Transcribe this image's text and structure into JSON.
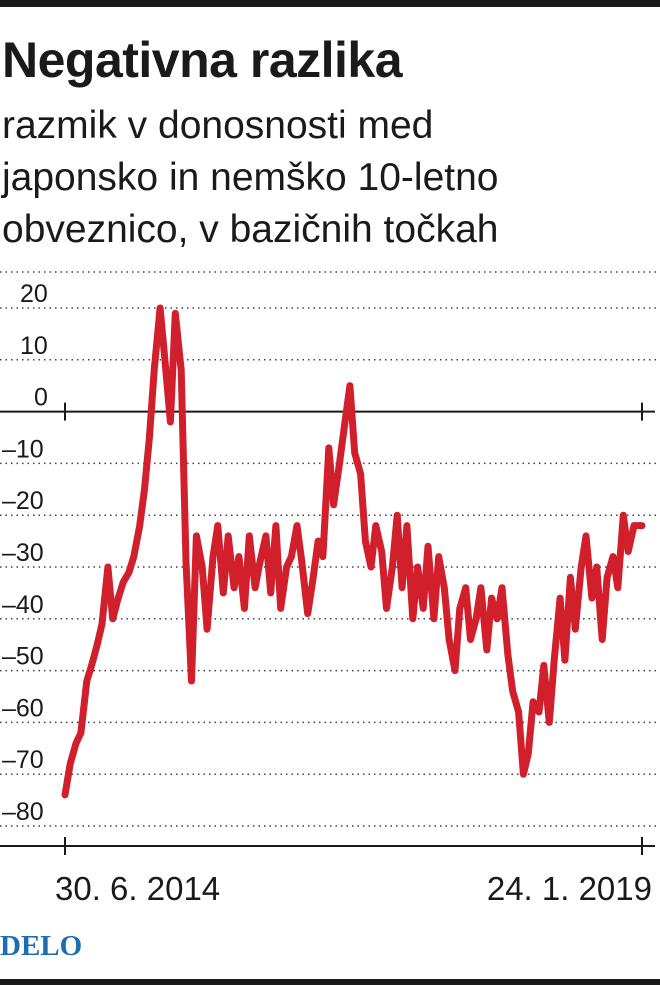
{
  "chart_data": {
    "type": "line",
    "title": "Negativna razlika",
    "subtitle_lines": [
      "razmik v donosnosti med",
      "japonsko in nemško 10-letno",
      "obveznico, v bazičnih točkah"
    ],
    "x_labels": {
      "start": "30. 6. 2014",
      "end": "24. 1. 2019"
    },
    "y_ticks": [
      20,
      10,
      0,
      -10,
      -20,
      -30,
      -40,
      -50,
      -60,
      -70,
      -80
    ],
    "y_tick_labels": [
      "20",
      "10",
      "0",
      "–10",
      "–20",
      "–30",
      "–40",
      "–50",
      "–60",
      "–70",
      "–80"
    ],
    "ylim": [
      -80,
      20
    ],
    "grid": true,
    "series": [
      {
        "color": "#d11f2c",
        "x": [
          "2014-06-30",
          "2014-07-15",
          "2014-08-01",
          "2014-08-15",
          "2014-09-01",
          "2014-09-15",
          "2014-10-01",
          "2014-10-15",
          "2014-11-01",
          "2014-11-15",
          "2014-12-01",
          "2014-12-15",
          "2015-01-01",
          "2015-01-15",
          "2015-02-01",
          "2015-02-15",
          "2015-03-01",
          "2015-03-15",
          "2015-04-01",
          "2015-04-15",
          "2015-05-01",
          "2015-05-15",
          "2015-06-01",
          "2015-06-15",
          "2015-07-01",
          "2015-07-15",
          "2015-08-01",
          "2015-08-15",
          "2015-09-01",
          "2015-09-15",
          "2015-10-01",
          "2015-10-15",
          "2015-11-01",
          "2015-11-15",
          "2015-12-01",
          "2015-12-15",
          "2016-01-01",
          "2016-01-15",
          "2016-02-01",
          "2016-02-15",
          "2016-03-01",
          "2016-03-15",
          "2016-04-01",
          "2016-04-15",
          "2016-05-01",
          "2016-05-15",
          "2016-06-01",
          "2016-06-15",
          "2016-07-01",
          "2016-07-15",
          "2016-08-01",
          "2016-08-15",
          "2016-09-01",
          "2016-09-15",
          "2016-10-01",
          "2016-10-15",
          "2016-11-01",
          "2016-11-15",
          "2016-12-01",
          "2016-12-15",
          "2017-01-01",
          "2017-01-15",
          "2017-02-01",
          "2017-02-15",
          "2017-03-01",
          "2017-03-15",
          "2017-04-01",
          "2017-04-15",
          "2017-05-01",
          "2017-05-15",
          "2017-06-01",
          "2017-06-15",
          "2017-07-01",
          "2017-07-15",
          "2017-08-01",
          "2017-08-15",
          "2017-09-01",
          "2017-09-15",
          "2017-10-01",
          "2017-10-15",
          "2017-11-01",
          "2017-11-15",
          "2017-12-01",
          "2017-12-15",
          "2018-01-01",
          "2018-01-15",
          "2018-02-01",
          "2018-02-15",
          "2018-03-01",
          "2018-03-15",
          "2018-04-01",
          "2018-04-15",
          "2018-05-01",
          "2018-05-15",
          "2018-06-01",
          "2018-06-15",
          "2018-07-01",
          "2018-07-15",
          "2018-08-01",
          "2018-08-15",
          "2018-09-01",
          "2018-09-15",
          "2018-10-01",
          "2018-10-15",
          "2018-11-01",
          "2018-11-15",
          "2018-12-01",
          "2018-12-15",
          "2019-01-01",
          "2019-01-24"
        ],
        "y": [
          -74,
          -68,
          -64,
          -62,
          -52,
          -49,
          -45,
          -41,
          -30,
          -40,
          -36,
          -33,
          -31,
          -28,
          -22,
          -15,
          -5,
          8,
          20,
          10,
          -2,
          19,
          8,
          -29,
          -52,
          -24,
          -30,
          -42,
          -28,
          -22,
          -35,
          -24,
          -34,
          -28,
          -38,
          -24,
          -34,
          -29,
          -24,
          -35,
          -22,
          -38,
          -30,
          -28,
          -22,
          -29,
          -39,
          -33,
          -25,
          -28,
          -7,
          -18,
          -10,
          -3,
          5,
          -8,
          -12,
          -25,
          -30,
          -22,
          -27,
          -38,
          -30,
          -20,
          -34,
          -22,
          -40,
          -30,
          -38,
          -26,
          -40,
          -28,
          -34,
          -44,
          -50,
          -38,
          -34,
          -44,
          -40,
          -34,
          -46,
          -36,
          -40,
          -34,
          -47,
          -54,
          -58,
          -70,
          -66,
          -56,
          -58,
          -49,
          -60,
          -48,
          -36,
          -48,
          -32,
          -42,
          -30,
          -24,
          -36,
          -30,
          -44,
          -32,
          -28,
          -34,
          -20,
          -27,
          -22,
          -22
        ]
      }
    ]
  },
  "brand": {
    "logo_text": "DELO",
    "logo_color": "#1e6db0"
  }
}
